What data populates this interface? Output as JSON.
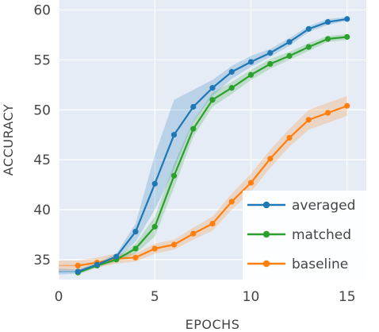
{
  "chart_data": {
    "type": "line",
    "title": "",
    "xlabel": "EPOCHS",
    "ylabel": "ACCURACY",
    "xlim": [
      0,
      16
    ],
    "ylim": [
      33,
      61
    ],
    "xticks": [
      0,
      5,
      10,
      15
    ],
    "yticks": [
      35,
      40,
      45,
      50,
      55,
      60
    ],
    "grid": true,
    "background": "#e5ecf6",
    "legend": "bottom-right",
    "x": [
      1,
      2,
      3,
      4,
      5,
      6,
      7,
      8,
      9,
      10,
      11,
      12,
      13,
      14,
      15
    ],
    "series": [
      {
        "name": "averaged",
        "color": "#1f77b4",
        "values": [
          33.8,
          34.5,
          35.3,
          37.8,
          42.6,
          47.5,
          50.3,
          52.2,
          53.8,
          54.8,
          55.7,
          56.8,
          58.1,
          58.8,
          59.1
        ],
        "lower": [
          33.6,
          34.3,
          35.0,
          36.8,
          40.0,
          44.0,
          48.8,
          51.4,
          53.1,
          54.3,
          55.3,
          56.4,
          57.8,
          58.5,
          58.9
        ],
        "upper": [
          34.0,
          34.7,
          35.6,
          38.6,
          45.5,
          51.0,
          52.0,
          53.0,
          54.4,
          55.4,
          56.1,
          57.2,
          58.4,
          59.1,
          59.3
        ]
      },
      {
        "name": "matched",
        "color": "#2ca02c",
        "values": [
          33.7,
          34.4,
          35.0,
          36.1,
          38.3,
          43.4,
          48.1,
          51.0,
          52.2,
          53.5,
          54.6,
          55.4,
          56.3,
          57.1,
          57.3
        ],
        "lower": [
          33.5,
          34.2,
          34.8,
          35.6,
          37.3,
          42.2,
          47.3,
          50.3,
          51.6,
          53.0,
          54.1,
          55.0,
          55.9,
          56.8,
          57.0
        ],
        "upper": [
          33.9,
          34.6,
          35.2,
          36.6,
          39.3,
          44.6,
          48.9,
          51.7,
          52.8,
          54.0,
          55.1,
          55.8,
          56.7,
          57.4,
          57.6
        ]
      },
      {
        "name": "baseline",
        "color": "#ff7f0e",
        "values": [
          34.4,
          34.7,
          35.1,
          35.2,
          36.1,
          36.5,
          37.6,
          38.6,
          40.8,
          42.7,
          45.1,
          47.2,
          49.0,
          49.7,
          50.4
        ],
        "lower": [
          33.9,
          34.2,
          34.6,
          34.8,
          35.6,
          36.0,
          37.0,
          37.9,
          40.0,
          41.8,
          44.2,
          46.3,
          48.0,
          48.7,
          49.4
        ],
        "upper": [
          34.9,
          35.2,
          35.6,
          35.6,
          36.6,
          37.0,
          38.2,
          39.3,
          41.6,
          43.6,
          46.0,
          48.1,
          50.0,
          50.7,
          51.4
        ]
      }
    ],
    "baseline_band_start": {
      "x": 0,
      "value": 34.4,
      "lower": 33.9,
      "upper": 34.9
    },
    "averaged_band_start": {
      "x": 0,
      "value": 33.8,
      "lower": 33.5,
      "upper": 34.1
    }
  }
}
